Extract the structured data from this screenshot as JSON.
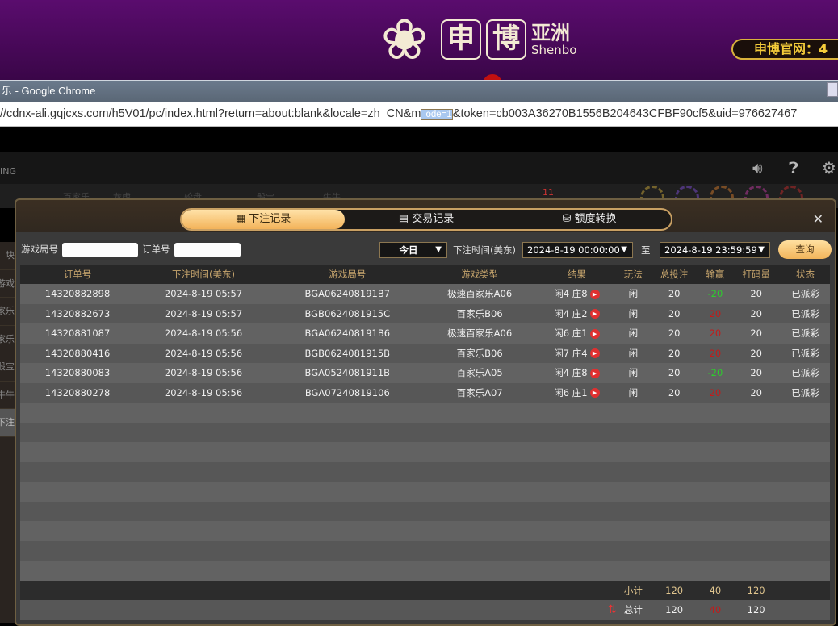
{
  "banner": {
    "flower_icon": "shenbo-flower-logo",
    "box1": "申",
    "box2": "博",
    "brand_cn": "亚洲",
    "brand_en": "Shenbo",
    "site_label": "申博官网：4"
  },
  "chrome": {
    "title": "乐 - Google Chrome",
    "url_pre": "//cdnx-ali.gqjcxs.com/h5V01/pc/index.html?return=about:blank&locale=zh_CN&m",
    "url_sel": "ode=1",
    "url_post": "&token=cb003A36270B1556B204643CFBF90cf5&uid=976627467"
  },
  "game": {
    "brand_fragment": "ING",
    "nav": [
      "百家乐",
      "龙虎",
      "轮盘",
      "骰宝",
      "牛牛"
    ],
    "nav_badge": "11",
    "chips": [
      "20",
      "50",
      "100",
      "1000",
      "10000"
    ]
  },
  "sidebar": [
    "块",
    "游戏",
    "百家乐",
    "百家乐",
    "骰宝",
    "牛牛",
    "下注"
  ],
  "tabs": [
    {
      "label": "下注记录",
      "icon": "calendar-icon",
      "active": true
    },
    {
      "label": "交易记录",
      "icon": "clipboard-icon"
    },
    {
      "label": "额度转换",
      "icon": "coins-icon"
    }
  ],
  "filter": {
    "round_label": "游戏局号",
    "round_value": "",
    "order_label": "订单号",
    "order_value": "",
    "period": "今日",
    "time_label": "下注时间(美东)",
    "from": "2024-8-19 00:00:00",
    "to_label": "至",
    "to": "2024-8-19 23:59:59",
    "query": "查询"
  },
  "table": {
    "headers": [
      "订单号",
      "下注时间(美东)",
      "游戏局号",
      "游戏类型",
      "结果",
      "玩法",
      "总投注",
      "输赢",
      "打码量",
      "状态"
    ],
    "rows": [
      [
        "14320882898",
        "2024-8-19 05:57",
        "BGA062408191B7",
        "极速百家乐A06",
        "闲4 庄8",
        "闲",
        "20",
        "-20",
        "20",
        "已派彩"
      ],
      [
        "14320882673",
        "2024-8-19 05:57",
        "BGB0624081915C",
        "百家乐B06",
        "闲4 庄2",
        "闲",
        "20",
        "20",
        "20",
        "已派彩"
      ],
      [
        "14320881087",
        "2024-8-19 05:56",
        "BGA062408191B6",
        "极速百家乐A06",
        "闲6 庄1",
        "闲",
        "20",
        "20",
        "20",
        "已派彩"
      ],
      [
        "14320880416",
        "2024-8-19 05:56",
        "BGB0624081915B",
        "百家乐B06",
        "闲7 庄4",
        "闲",
        "20",
        "20",
        "20",
        "已派彩"
      ],
      [
        "14320880083",
        "2024-8-19 05:56",
        "BGA0524081911B",
        "百家乐A05",
        "闲4 庄8",
        "闲",
        "20",
        "-20",
        "20",
        "已派彩"
      ],
      [
        "14320880278",
        "2024-8-19 05:56",
        "BGA07240819106",
        "百家乐A07",
        "闲6 庄1",
        "闲",
        "20",
        "20",
        "20",
        "已派彩"
      ]
    ],
    "subtotal": {
      "label": "小计",
      "bet": "120",
      "winloss": "40",
      "code": "120"
    },
    "total": {
      "label": "总计",
      "bet": "120",
      "winloss": "40",
      "code": "120"
    },
    "colors": {
      "win": "#2ecc2e",
      "loss": "#c41a1a",
      "accent": "#f3b35a"
    }
  }
}
